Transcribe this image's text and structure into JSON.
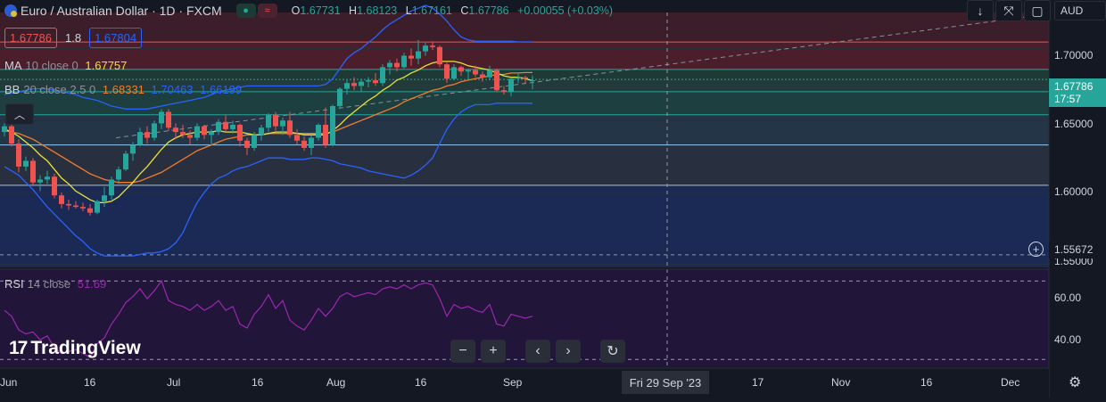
{
  "header": {
    "title": "Euro / Australian Dollar · 1D · FXCM",
    "ohlc": [
      {
        "k": "O",
        "v": "1.67731"
      },
      {
        "k": "H",
        "v": "1.68123"
      },
      {
        "k": "L",
        "v": "1.67161"
      },
      {
        "k": "C",
        "v": "1.67786"
      }
    ],
    "change": "+0.00055 (+0.03%)"
  },
  "trade": {
    "sell": "1.67786",
    "spread": "1.8",
    "buy": "1.67804"
  },
  "toolbar": {
    "currency": "AUD"
  },
  "indicators": {
    "ma": {
      "name": "MA",
      "params": "10 close 0",
      "value": "1.67757"
    },
    "bb": {
      "name": "BB",
      "params": "20 close 2.5 0",
      "basis": "1.68331",
      "upper": "1.70463",
      "lower": "1.66199"
    },
    "rsi": {
      "name": "RSI",
      "params": "14 close",
      "value": "51.69"
    }
  },
  "price_axis": {
    "ticks": [
      "1.70000",
      "1.65000",
      "1.60000",
      "1.55000"
    ],
    "last_price": "1.67786",
    "countdown": "17:57",
    "crosshair_price": "1.55672"
  },
  "rsi_axis": {
    "ticks": [
      "60.00",
      "40.00"
    ]
  },
  "time_axis": {
    "labels": [
      "Jun",
      "16",
      "Jul",
      "16",
      "Aug",
      "16",
      "Sep",
      "17",
      "Nov",
      "16",
      "Dec"
    ],
    "crosshair_date": "Fri 29 Sep '23"
  },
  "brand": {
    "logo": "TradingView"
  },
  "colors": {
    "up": "#26a69a",
    "down": "#ef5350",
    "ma": "#e8e337",
    "bb_basis": "#f57c2a",
    "bb_band": "#2962ff",
    "rsi": "#9c27b0",
    "bg": "#141823"
  },
  "chart_data": {
    "type": "candlestick",
    "symbol": "EURAUD",
    "interval": "1D",
    "x": [
      "2023-05-29",
      "2023-05-30",
      "2023-05-31",
      "2023-06-01",
      "2023-06-02",
      "2023-06-05",
      "2023-06-06",
      "2023-06-07",
      "2023-06-08",
      "2023-06-09",
      "2023-06-12",
      "2023-06-13",
      "2023-06-14",
      "2023-06-15",
      "2023-06-16",
      "2023-06-19",
      "2023-06-20",
      "2023-06-21",
      "2023-06-22",
      "2023-06-23",
      "2023-06-26",
      "2023-06-27",
      "2023-06-28",
      "2023-06-29",
      "2023-06-30",
      "2023-07-03",
      "2023-07-04",
      "2023-07-05",
      "2023-07-06",
      "2023-07-07",
      "2023-07-10",
      "2023-07-11",
      "2023-07-12",
      "2023-07-13",
      "2023-07-14",
      "2023-07-17",
      "2023-07-18",
      "2023-07-19",
      "2023-07-20",
      "2023-07-21",
      "2023-07-24",
      "2023-07-25",
      "2023-07-26",
      "2023-07-27",
      "2023-07-28",
      "2023-07-31",
      "2023-08-01",
      "2023-08-02",
      "2023-08-03",
      "2023-08-04",
      "2023-08-07",
      "2023-08-08",
      "2023-08-09",
      "2023-08-10",
      "2023-08-11",
      "2023-08-14",
      "2023-08-15",
      "2023-08-16",
      "2023-08-17",
      "2023-08-18",
      "2023-08-21",
      "2023-08-22",
      "2023-08-23",
      "2023-08-24",
      "2023-08-25",
      "2023-08-28",
      "2023-08-29",
      "2023-08-30",
      "2023-08-31",
      "2023-09-01",
      "2023-09-04",
      "2023-09-05",
      "2023-09-06",
      "2023-09-07",
      "2023-09-08"
    ],
    "ohlc": [
      [
        1.642,
        1.648,
        1.639,
        1.646
      ],
      [
        1.646,
        1.649,
        1.632,
        1.634
      ],
      [
        1.634,
        1.637,
        1.614,
        1.618
      ],
      [
        1.618,
        1.625,
        1.615,
        1.622
      ],
      [
        1.622,
        1.624,
        1.605,
        1.607
      ],
      [
        1.607,
        1.612,
        1.601,
        1.609
      ],
      [
        1.609,
        1.615,
        1.606,
        1.611
      ],
      [
        1.611,
        1.613,
        1.596,
        1.598
      ],
      [
        1.598,
        1.6,
        1.589,
        1.592
      ],
      [
        1.592,
        1.595,
        1.588,
        1.591
      ],
      [
        1.591,
        1.594,
        1.589,
        1.59
      ],
      [
        1.59,
        1.593,
        1.587,
        1.589
      ],
      [
        1.589,
        1.592,
        1.584,
        1.586
      ],
      [
        1.586,
        1.595,
        1.585,
        1.594
      ],
      [
        1.594,
        1.604,
        1.59,
        1.598
      ],
      [
        1.598,
        1.611,
        1.595,
        1.609
      ],
      [
        1.609,
        1.618,
        1.606,
        1.616
      ],
      [
        1.616,
        1.629,
        1.615,
        1.627
      ],
      [
        1.627,
        1.635,
        1.622,
        1.633
      ],
      [
        1.633,
        1.645,
        1.632,
        1.642
      ],
      [
        1.642,
        1.646,
        1.634,
        1.638
      ],
      [
        1.638,
        1.65,
        1.636,
        1.648
      ],
      [
        1.648,
        1.658,
        1.644,
        1.656
      ],
      [
        1.656,
        1.658,
        1.643,
        1.645
      ],
      [
        1.645,
        1.648,
        1.637,
        1.642
      ],
      [
        1.642,
        1.647,
        1.638,
        1.64
      ],
      [
        1.64,
        1.643,
        1.633,
        1.638
      ],
      [
        1.638,
        1.648,
        1.636,
        1.646
      ],
      [
        1.646,
        1.647,
        1.637,
        1.64
      ],
      [
        1.64,
        1.644,
        1.633,
        1.642
      ],
      [
        1.642,
        1.651,
        1.64,
        1.649
      ],
      [
        1.649,
        1.654,
        1.642,
        1.644
      ],
      [
        1.644,
        1.65,
        1.641,
        1.647
      ],
      [
        1.647,
        1.648,
        1.632,
        1.636
      ],
      [
        1.636,
        1.638,
        1.626,
        1.631
      ],
      [
        1.631,
        1.642,
        1.629,
        1.64
      ],
      [
        1.64,
        1.647,
        1.636,
        1.645
      ],
      [
        1.645,
        1.655,
        1.642,
        1.654
      ],
      [
        1.654,
        1.656,
        1.643,
        1.646
      ],
      [
        1.646,
        1.652,
        1.64,
        1.65
      ],
      [
        1.65,
        1.656,
        1.638,
        1.64
      ],
      [
        1.64,
        1.644,
        1.633,
        1.636
      ],
      [
        1.636,
        1.639,
        1.629,
        1.631
      ],
      [
        1.631,
        1.64,
        1.626,
        1.638
      ],
      [
        1.638,
        1.648,
        1.636,
        1.647
      ],
      [
        1.647,
        1.659,
        1.631,
        1.633
      ],
      [
        1.633,
        1.661,
        1.632,
        1.66
      ],
      [
        1.66,
        1.673,
        1.658,
        1.672
      ],
      [
        1.672,
        1.678,
        1.668,
        1.676
      ],
      [
        1.676,
        1.68,
        1.671,
        1.674
      ],
      [
        1.674,
        1.679,
        1.67,
        1.677
      ],
      [
        1.677,
        1.68,
        1.673,
        1.678
      ],
      [
        1.678,
        1.683,
        1.674,
        1.676
      ],
      [
        1.676,
        1.689,
        1.674,
        1.687
      ],
      [
        1.687,
        1.692,
        1.682,
        1.69
      ],
      [
        1.69,
        1.693,
        1.684,
        1.687
      ],
      [
        1.687,
        1.697,
        1.686,
        1.695
      ],
      [
        1.695,
        1.7,
        1.688,
        1.693
      ],
      [
        1.693,
        1.706,
        1.689,
        1.698
      ],
      [
        1.698,
        1.704,
        1.695,
        1.702
      ],
      [
        1.702,
        1.705,
        1.699,
        1.701
      ],
      [
        1.701,
        1.702,
        1.687,
        1.689
      ],
      [
        1.689,
        1.69,
        1.676,
        1.679
      ],
      [
        1.679,
        1.689,
        1.678,
        1.687
      ],
      [
        1.687,
        1.688,
        1.681,
        1.684
      ],
      [
        1.684,
        1.686,
        1.678,
        1.685
      ],
      [
        1.685,
        1.688,
        1.68,
        1.682
      ],
      [
        1.682,
        1.684,
        1.677,
        1.68
      ],
      [
        1.68,
        1.688,
        1.678,
        1.685
      ],
      [
        1.685,
        1.686,
        1.67,
        1.671
      ],
      [
        1.671,
        1.674,
        1.668,
        1.67
      ],
      [
        1.67,
        1.68,
        1.667,
        1.679
      ],
      [
        1.679,
        1.683,
        1.676,
        1.68
      ],
      [
        1.68,
        1.681,
        1.676,
        1.679
      ],
      [
        1.6773,
        1.6812,
        1.6716,
        1.6779
      ]
    ],
    "ma10": [
      1.644,
      1.642,
      1.639,
      1.635,
      1.631,
      1.626,
      1.622,
      1.616,
      1.61,
      1.606,
      1.601,
      1.598,
      1.595,
      1.593,
      1.593,
      1.594,
      1.597,
      1.602,
      1.607,
      1.613,
      1.618,
      1.624,
      1.63,
      1.635,
      1.638,
      1.64,
      1.641,
      1.642,
      1.642,
      1.642,
      1.643,
      1.642,
      1.642,
      1.642,
      1.641,
      1.64,
      1.64,
      1.641,
      1.642,
      1.642,
      1.642,
      1.641,
      1.64,
      1.64,
      1.64,
      1.64,
      1.643,
      1.647,
      1.652,
      1.656,
      1.66,
      1.664,
      1.667,
      1.671,
      1.674,
      1.678,
      1.68,
      1.683,
      1.685,
      1.688,
      1.69,
      1.691,
      1.691,
      1.691,
      1.69,
      1.688,
      1.687,
      1.686,
      1.685,
      1.683,
      1.681,
      1.68,
      1.68,
      1.679,
      1.6776
    ],
    "bb_basis": [
      1.643,
      1.642,
      1.641,
      1.639,
      1.637,
      1.634,
      1.631,
      1.628,
      1.625,
      1.622,
      1.619,
      1.616,
      1.613,
      1.611,
      1.609,
      1.608,
      1.607,
      1.607,
      1.607,
      1.608,
      1.61,
      1.612,
      1.614,
      1.617,
      1.62,
      1.623,
      1.626,
      1.629,
      1.631,
      1.633,
      1.635,
      1.637,
      1.638,
      1.639,
      1.64,
      1.64,
      1.64,
      1.641,
      1.641,
      1.641,
      1.641,
      1.641,
      1.641,
      1.641,
      1.641,
      1.641,
      1.642,
      1.644,
      1.646,
      1.648,
      1.65,
      1.652,
      1.654,
      1.656,
      1.658,
      1.66,
      1.663,
      1.665,
      1.667,
      1.669,
      1.671,
      1.672,
      1.674,
      1.675,
      1.677,
      1.678,
      1.679,
      1.68,
      1.681,
      1.682,
      1.682,
      1.683,
      1.683,
      1.6833,
      1.6833
    ],
    "bb_upper": [
      1.668,
      1.669,
      1.67,
      1.671,
      1.672,
      1.672,
      1.672,
      1.671,
      1.67,
      1.669,
      1.668,
      1.666,
      1.665,
      1.664,
      1.662,
      1.66,
      1.659,
      1.658,
      1.658,
      1.658,
      1.658,
      1.659,
      1.66,
      1.661,
      1.662,
      1.663,
      1.664,
      1.665,
      1.666,
      1.668,
      1.67,
      1.671,
      1.672,
      1.673,
      1.674,
      1.674,
      1.674,
      1.674,
      1.674,
      1.674,
      1.674,
      1.674,
      1.674,
      1.674,
      1.674,
      1.675,
      1.679,
      1.686,
      1.693,
      1.697,
      1.7,
      1.704,
      1.708,
      1.713,
      1.717,
      1.72,
      1.723,
      1.726,
      1.728,
      1.73,
      1.728,
      1.724,
      1.719,
      1.713,
      1.708,
      1.706,
      1.705,
      1.705,
      1.705,
      1.705,
      1.705,
      1.705,
      1.7046,
      1.7046,
      1.7046
    ],
    "bb_lower": [
      1.618,
      1.615,
      1.612,
      1.607,
      1.602,
      1.596,
      1.59,
      1.585,
      1.58,
      1.575,
      1.57,
      1.566,
      1.561,
      1.558,
      1.556,
      1.556,
      1.556,
      1.556,
      1.556,
      1.557,
      1.558,
      1.558,
      1.559,
      1.561,
      1.565,
      1.572,
      1.583,
      1.593,
      1.6,
      1.606,
      1.61,
      1.612,
      1.615,
      1.617,
      1.618,
      1.62,
      1.622,
      1.624,
      1.624,
      1.624,
      1.623,
      1.623,
      1.623,
      1.624,
      1.624,
      1.623,
      1.622,
      1.62,
      1.619,
      1.618,
      1.617,
      1.615,
      1.614,
      1.613,
      1.612,
      1.611,
      1.61,
      1.612,
      1.615,
      1.619,
      1.624,
      1.634,
      1.644,
      1.651,
      1.656,
      1.659,
      1.661,
      1.661,
      1.661,
      1.662,
      1.662,
      1.662,
      1.662,
      1.662,
      1.662
    ],
    "rsi": [
      55,
      52,
      45,
      43,
      44,
      40,
      42,
      36,
      33,
      34,
      35,
      33,
      31,
      38,
      41,
      48,
      53,
      59,
      62,
      66,
      61,
      65,
      70,
      60,
      58,
      57,
      55,
      58,
      55,
      57,
      60,
      55,
      57,
      48,
      46,
      53,
      57,
      63,
      56,
      60,
      50,
      47,
      45,
      50,
      56,
      52,
      56,
      62,
      64,
      62,
      63,
      64,
      63,
      66,
      67,
      66,
      68,
      66,
      68,
      69,
      68,
      61,
      52,
      58,
      56,
      57,
      55,
      54,
      58,
      48,
      47,
      53,
      52,
      51,
      52
    ],
    "horizontal_levels": [
      1.7045,
      1.6855,
      1.6785,
      1.67,
      1.654,
      1.633,
      1.605
    ],
    "ylim": [
      1.548,
      1.725
    ],
    "rsi_ylim": [
      26,
      76
    ],
    "rsi_levels": [
      70,
      30
    ]
  }
}
